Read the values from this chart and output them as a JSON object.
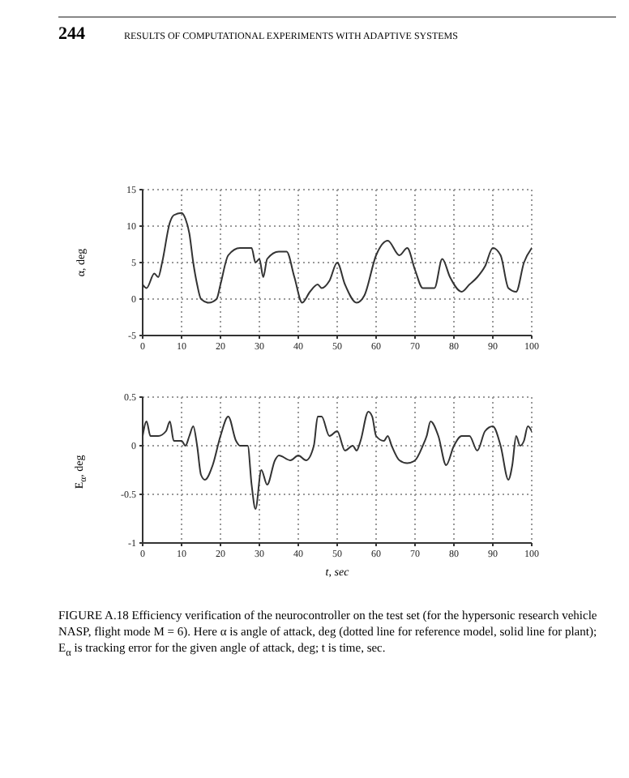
{
  "chart_data": [
    {
      "type": "line",
      "annotations": [
        "244",
        "RESULTS OF COMPUTATIONAL EXPERIMENTS WITH ADAPTIVE SYSTEMS"
      ],
      "ylabel": "α, deg",
      "xlim": [
        0,
        100
      ],
      "xticks": [
        0,
        10,
        20,
        30,
        40,
        50,
        60,
        70,
        80,
        90,
        100
      ],
      "ylim": [
        -5,
        15
      ],
      "yticks": [
        -5,
        0,
        5,
        10,
        15
      ],
      "grid": true,
      "line_style": "solid",
      "series": [
        {
          "color": "#333333",
          "x": [
            0,
            1,
            3,
            4,
            5,
            7,
            8,
            10,
            11,
            12,
            13,
            14,
            15,
            17,
            19,
            20,
            22,
            25,
            28,
            29,
            30,
            31,
            32,
            35,
            37,
            39,
            41,
            43,
            45,
            46,
            48,
            50,
            52,
            55,
            57,
            60,
            63,
            66,
            68,
            70,
            72,
            75,
            77,
            79,
            82,
            84,
            86,
            88,
            90,
            92,
            94,
            96,
            98,
            100
          ],
          "values": [
            2,
            1.5,
            3.5,
            3,
            5,
            10.5,
            11.5,
            11.8,
            11,
            9,
            5,
            2,
            0,
            -0.5,
            0,
            2,
            6,
            7,
            7,
            5,
            5.5,
            3,
            5.5,
            6.5,
            6.5,
            3,
            -0.5,
            1,
            2,
            1.5,
            2.5,
            5,
            2,
            -0.5,
            0.5,
            6,
            8,
            6,
            7,
            4,
            1.5,
            1.5,
            5.5,
            3,
            1,
            2,
            3,
            4.5,
            7,
            6,
            1.5,
            1,
            5,
            7
          ]
        }
      ]
    },
    {
      "type": "line",
      "annotations": [
        "FIGURE A.18 Efficiency verification of the neurocontroller on the test set (for the hypersonic research vehicle NASP, flight mode M = 6). Here α is angle of attack, deg (dotted line for reference model, solid line for plant); E$_{α}$ is tracking error for the given angle of attack, deg; t is time, sec."
      ],
      "xlabel": "t, sec",
      "ylabel": "E$_{α}$, deg",
      "xlim": [
        0,
        100
      ],
      "xticks": [
        0,
        10,
        20,
        30,
        40,
        50,
        60,
        70,
        80,
        90,
        100
      ],
      "ylim": [
        -1,
        0.5
      ],
      "yticks": [
        -1,
        -0.5,
        0,
        0.5
      ],
      "grid": true,
      "line_style": "solid",
      "series": [
        {
          "color": "#333333",
          "x": [
            0,
            1,
            2,
            4,
            6,
            7,
            8,
            10,
            11,
            12,
            13,
            14,
            15,
            16,
            18,
            20,
            22,
            24,
            25,
            27,
            28,
            29,
            30.5,
            32,
            34,
            35,
            38,
            40,
            42,
            44,
            45,
            46,
            48,
            50,
            52,
            54,
            55,
            56,
            58,
            59,
            60,
            62,
            63,
            64,
            66,
            68,
            70,
            72,
            73,
            74,
            76,
            78,
            80,
            82,
            84,
            86,
            88,
            90,
            92,
            94,
            95,
            96,
            97,
            98,
            99,
            100
          ],
          "values": [
            0.1,
            0.25,
            0.1,
            0.1,
            0.15,
            0.25,
            0.05,
            0.05,
            0,
            0.1,
            0.2,
            0,
            -0.3,
            -0.35,
            -0.2,
            0.1,
            0.3,
            0.05,
            0,
            0,
            -0.4,
            -0.65,
            -0.25,
            -0.4,
            -0.15,
            -0.1,
            -0.15,
            -0.1,
            -0.15,
            0,
            0.3,
            0.3,
            0.1,
            0.15,
            -0.05,
            0,
            -0.05,
            0.05,
            0.35,
            0.3,
            0.1,
            0.05,
            0.1,
            0,
            -0.15,
            -0.18,
            -0.15,
            0,
            0.1,
            0.25,
            0.1,
            -0.2,
            0,
            0.1,
            0.1,
            -0.05,
            0.15,
            0.2,
            0,
            -0.35,
            -0.2,
            0.1,
            0,
            0.05,
            0.2,
            0.15
          ]
        }
      ]
    }
  ]
}
